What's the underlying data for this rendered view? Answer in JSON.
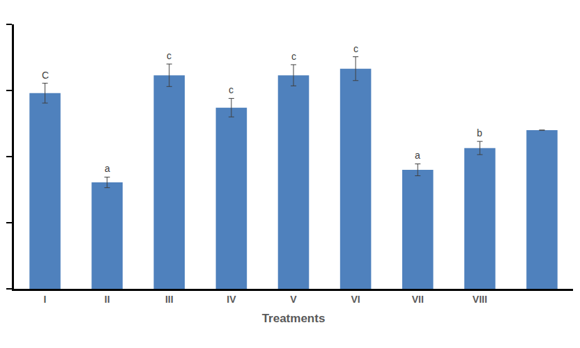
{
  "chart_data": {
    "type": "bar",
    "xlabel": "Treatments",
    "categories": [
      "I",
      "II",
      "III",
      "IV",
      "V",
      "VI",
      "VII",
      "VIII",
      null
    ],
    "values": [
      2.96,
      1.61,
      3.23,
      2.74,
      3.23,
      3.33,
      1.8,
      2.13,
      2.4
    ],
    "errors": [
      0.15,
      0.08,
      0.17,
      0.14,
      0.16,
      0.18,
      0.09,
      0.1,
      null
    ],
    "letters": [
      "C",
      "a",
      "c",
      "c",
      "c",
      "c",
      "a",
      "b",
      null
    ],
    "color": "#4f81bd",
    "ylim": [
      0,
      4
    ],
    "yticks": [
      0,
      1,
      2,
      3,
      4
    ],
    "grid": false,
    "tick_labels": "x"
  }
}
